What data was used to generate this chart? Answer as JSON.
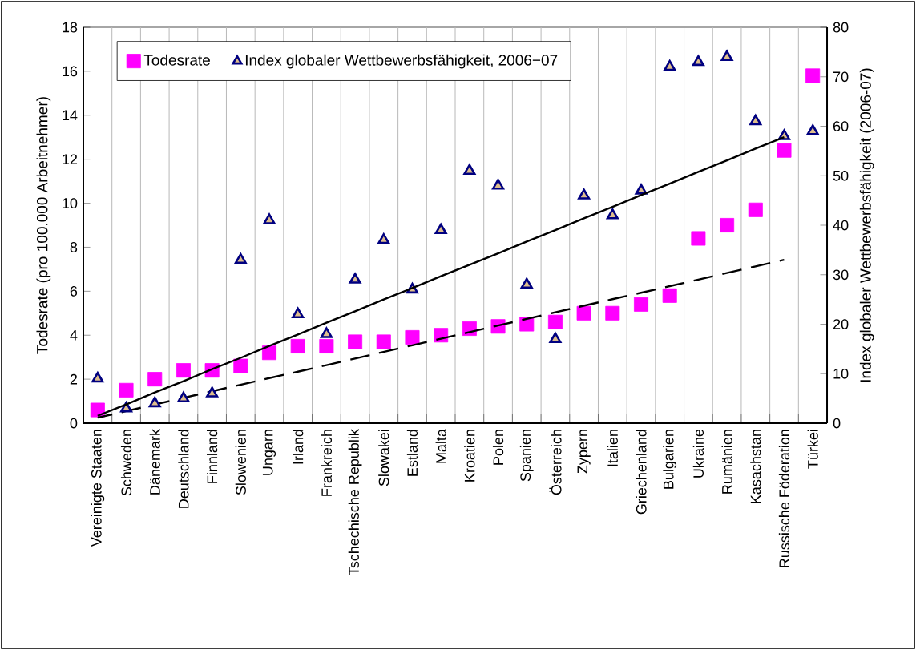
{
  "chart_data": {
    "type": "scatter",
    "ylabel": "Todesrate (pro 100.000 Arbeitnehmer)",
    "y2label": "Index globaler Wettbewerbsfähigkeit (2006-07)",
    "categories": [
      "Vereinigte Staaten",
      "Schweden",
      "Dänemark",
      "Deutschland",
      "Finnland",
      "Slowenien",
      "Ungarn",
      "Irland",
      "Frankreich",
      "Tschechische Republik",
      "Slowakei",
      "Estland",
      "Malta",
      "Kroatien",
      "Polen",
      "Spanien",
      "Österreich",
      "Zypern",
      "Italien",
      "Griechenland",
      "Bulgarien",
      "Ukraine",
      "Rumänien",
      "Kasachstan",
      "Russische Föderation",
      "Türkei"
    ],
    "series": [
      {
        "name": "Todesrate",
        "color": "#ff00ff",
        "marker": "square",
        "values": [
          0.6,
          1.5,
          2.0,
          2.4,
          2.4,
          2.6,
          3.2,
          3.5,
          3.5,
          3.7,
          3.7,
          3.9,
          4.0,
          4.3,
          4.4,
          4.5,
          4.6,
          5.0,
          5.0,
          5.4,
          5.8,
          8.4,
          9.0,
          9.7,
          12.4,
          15.8
        ]
      },
      {
        "name": "Index globaler Wettbewerbsfähigkeit, 2006−07",
        "color": "#000080",
        "marker": "triangle",
        "axis": "y2",
        "values": [
          9,
          3,
          4,
          5,
          6,
          33,
          41,
          22,
          18,
          29,
          37,
          27,
          39,
          51,
          48,
          28,
          17,
          46,
          42,
          47,
          72,
          73,
          74,
          61,
          58,
          59
        ]
      },
      {
        "type": "line",
        "color": "#000000",
        "line_style": "solid",
        "axis": "y2",
        "values": [
          1.5,
          3.8,
          6.2,
          8.5,
          10.9,
          13.2,
          15.6,
          17.9,
          20.3,
          22.6,
          25.0,
          27.3,
          29.7,
          32.0,
          34.3,
          36.7,
          39.0,
          41.4,
          43.7,
          46.1,
          48.4,
          50.8,
          53.1,
          55.5,
          57.8,
          null
        ]
      },
      {
        "type": "line",
        "color": "#000000",
        "line_style": "dashed",
        "values": [
          0.25,
          0.55,
          0.85,
          1.15,
          1.45,
          1.75,
          2.05,
          2.34,
          2.64,
          2.94,
          3.24,
          3.54,
          3.84,
          4.14,
          4.44,
          4.74,
          5.04,
          5.34,
          5.64,
          5.93,
          6.23,
          6.53,
          6.83,
          7.13,
          7.43,
          null
        ]
      }
    ],
    "ylim": [
      0,
      18
    ],
    "yticks": [
      0,
      2,
      4,
      6,
      8,
      10,
      12,
      14,
      16,
      18
    ],
    "y2lim": [
      0,
      80
    ],
    "y2ticks": [
      0,
      10,
      20,
      30,
      40,
      50,
      60,
      70,
      80
    ],
    "grid": "x",
    "legend": "top left"
  }
}
